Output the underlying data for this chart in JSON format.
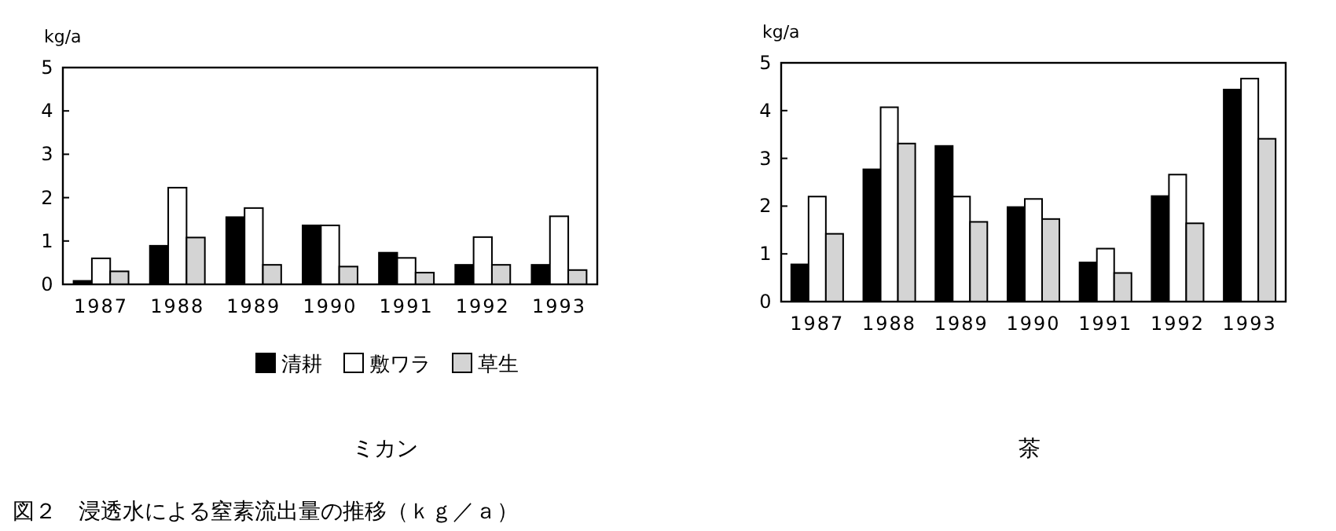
{
  "chart_data": [
    {
      "type": "bar",
      "title": "ミカン",
      "ylabel": "kg/a",
      "categories": [
        "1987",
        "1988",
        "1989",
        "1990",
        "1991",
        "1992",
        "1993"
      ],
      "ylim": [
        0,
        5
      ],
      "yticks": [
        0,
        1,
        2,
        3,
        4,
        5
      ],
      "grid": false,
      "legend": "bottom",
      "series": [
        {
          "name": "清耕",
          "color": "#000000",
          "values": [
            0.08,
            0.89,
            1.55,
            1.36,
            0.73,
            0.45,
            0.45
          ]
        },
        {
          "name": "敷ワラ",
          "color": "#ffffff",
          "values": [
            0.6,
            2.23,
            1.76,
            1.36,
            0.61,
            1.09,
            1.57
          ]
        },
        {
          "name": "草生",
          "color": "#d4d4d4",
          "values": [
            0.3,
            1.08,
            0.45,
            0.41,
            0.27,
            0.45,
            0.33
          ]
        }
      ],
      "annotations": [
        "図２　浸透水による窒素流出量の推移（ｋｇ／ａ）"
      ]
    },
    {
      "type": "bar",
      "title": "茶",
      "ylabel": "kg/a",
      "categories": [
        "1987",
        "1988",
        "1989",
        "1990",
        "1991",
        "1992",
        "1993"
      ],
      "ylim": [
        0,
        5
      ],
      "yticks": [
        0,
        1,
        2,
        3,
        4,
        5
      ],
      "grid": false,
      "series": [
        {
          "color": "#000000",
          "values": [
            0.78,
            2.77,
            3.26,
            1.98,
            0.82,
            2.21,
            4.44
          ]
        },
        {
          "color": "#ffffff",
          "values": [
            2.2,
            4.07,
            2.2,
            2.15,
            1.11,
            2.66,
            4.67
          ]
        },
        {
          "color": "#d4d4d4",
          "values": [
            1.42,
            3.31,
            1.67,
            1.73,
            0.6,
            1.64,
            3.41
          ]
        }
      ]
    }
  ]
}
